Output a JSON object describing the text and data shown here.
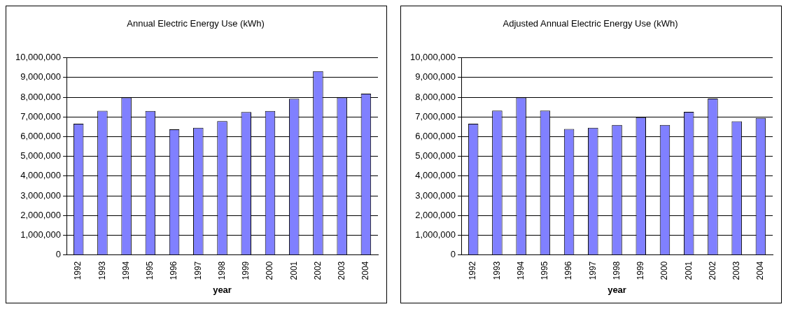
{
  "chart_data": [
    {
      "type": "bar",
      "title": "Annual Electric Energy Use (kWh)",
      "xlabel": "year",
      "categories": [
        "1992",
        "1993",
        "1994",
        "1995",
        "1996",
        "1997",
        "1998",
        "1999",
        "2000",
        "2001",
        "2002",
        "2003",
        "2004"
      ],
      "values": [
        6650000,
        7310000,
        7980000,
        7300000,
        6370000,
        6450000,
        6790000,
        7250000,
        7300000,
        7920000,
        9320000,
        7980000,
        8180000
      ],
      "color": "#8080ff",
      "ylim": [
        0,
        10000000
      ],
      "yticks": [
        {
          "value": 0,
          "label": "0"
        },
        {
          "value": 1000000,
          "label": "1,000,000"
        },
        {
          "value": 2000000,
          "label": "2,000,000"
        },
        {
          "value": 3000000,
          "label": "3,000,000"
        },
        {
          "value": 4000000,
          "label": "4,000,000"
        },
        {
          "value": 5000000,
          "label": "5,000,000"
        },
        {
          "value": 6000000,
          "label": "6,000,000"
        },
        {
          "value": 7000000,
          "label": "7,000,000"
        },
        {
          "value": 8000000,
          "label": "8,000,000"
        },
        {
          "value": 9000000,
          "label": "9,000,000"
        },
        {
          "value": 10000000,
          "label": "10,000,000"
        }
      ],
      "grid": "y"
    },
    {
      "type": "bar",
      "title": "Adjusted Annual Electric Energy Use (kWh)",
      "xlabel": "year",
      "categories": [
        "1992",
        "1993",
        "1994",
        "1995",
        "1996",
        "1997",
        "1998",
        "1999",
        "2000",
        "2001",
        "2002",
        "2003",
        "2004"
      ],
      "values": [
        6650000,
        7320000,
        7980000,
        7320000,
        6390000,
        6450000,
        6590000,
        6980000,
        6590000,
        7260000,
        7930000,
        6780000,
        6950000
      ],
      "color": "#8080ff",
      "ylim": [
        0,
        10000000
      ],
      "yticks": [
        {
          "value": 0,
          "label": "0"
        },
        {
          "value": 1000000,
          "label": "1,000,000"
        },
        {
          "value": 2000000,
          "label": "2,000,000"
        },
        {
          "value": 3000000,
          "label": "3,000,000"
        },
        {
          "value": 4000000,
          "label": "4,000,000"
        },
        {
          "value": 5000000,
          "label": "5,000,000"
        },
        {
          "value": 6000000,
          "label": "6,000,000"
        },
        {
          "value": 7000000,
          "label": "7,000,000"
        },
        {
          "value": 8000000,
          "label": "8,000,000"
        },
        {
          "value": 9000000,
          "label": "9,000,000"
        },
        {
          "value": 10000000,
          "label": "10,000,000"
        }
      ],
      "grid": "y"
    }
  ]
}
